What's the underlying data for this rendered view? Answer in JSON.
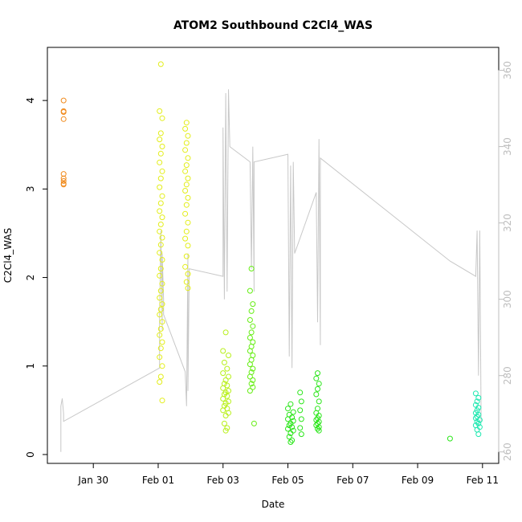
{
  "chart_data": {
    "type": "scatter",
    "title": "ATOM2 Southbound C2Cl4_WAS",
    "xlabel": "Date",
    "ylabel": "C2Cl4_WAS",
    "xlim": [
      "2017-01-28T14:00",
      "2017-02-11T12:00"
    ],
    "ylim": [
      -0.1,
      4.6
    ],
    "y2lim": [
      257,
      366
    ],
    "x_ticks": [
      {
        "label": "Jan 30",
        "date": "2017-01-30"
      },
      {
        "label": "Feb 01",
        "date": "2017-02-01"
      },
      {
        "label": "Feb 03",
        "date": "2017-02-03"
      },
      {
        "label": "Feb 05",
        "date": "2017-02-05"
      },
      {
        "label": "Feb 07",
        "date": "2017-02-07"
      },
      {
        "label": "Feb 09",
        "date": "2017-02-09"
      },
      {
        "label": "Feb 11",
        "date": "2017-02-11"
      }
    ],
    "y_ticks": [
      0,
      1,
      2,
      3,
      4
    ],
    "y2_ticks": [
      260,
      280,
      300,
      320,
      340,
      360
    ],
    "colors": {
      "orange": "#f08a1c",
      "yellow": "#e3ee1a",
      "yellow_green": "#b8f01a",
      "green": "#66ee14",
      "bright_green": "#2be61a",
      "aqua": "#1ee8b0",
      "secondary_line": "#c8c8c8",
      "right_axis": "#bdbdbd"
    },
    "scatter_groups": [
      {
        "color": "orange",
        "points": [
          [
            "2017-01-29T02:00",
            4.0
          ],
          [
            "2017-01-29T02:00",
            3.88
          ],
          [
            "2017-01-29T02:00",
            3.87
          ],
          [
            "2017-01-29T02:00",
            3.79
          ],
          [
            "2017-01-29T02:00",
            3.17
          ],
          [
            "2017-01-29T02:00",
            3.12
          ],
          [
            "2017-01-29T02:00",
            3.09
          ],
          [
            "2017-01-29T02:00",
            3.06
          ],
          [
            "2017-01-29T02:00",
            3.05
          ]
        ]
      },
      {
        "color": "yellow",
        "points": [
          [
            "2017-02-01T02:00",
            4.41
          ],
          [
            "2017-02-01T01:00",
            3.88
          ],
          [
            "2017-02-01T03:00",
            3.8
          ],
          [
            "2017-02-01T02:00",
            3.63
          ],
          [
            "2017-02-01T01:00",
            3.56
          ],
          [
            "2017-02-01T03:00",
            3.48
          ],
          [
            "2017-02-01T02:00",
            3.4
          ],
          [
            "2017-02-01T01:00",
            3.3
          ],
          [
            "2017-02-01T03:00",
            3.2
          ],
          [
            "2017-02-01T02:00",
            3.12
          ],
          [
            "2017-02-01T01:00",
            3.02
          ],
          [
            "2017-02-01T03:00",
            2.92
          ],
          [
            "2017-02-01T02:00",
            2.84
          ],
          [
            "2017-02-01T01:00",
            2.75
          ],
          [
            "2017-02-01T03:00",
            2.68
          ],
          [
            "2017-02-01T02:00",
            2.6
          ],
          [
            "2017-02-01T01:00",
            2.52
          ],
          [
            "2017-02-01T03:00",
            2.45
          ],
          [
            "2017-02-01T02:00",
            2.37
          ],
          [
            "2017-02-01T01:00",
            2.28
          ],
          [
            "2017-02-01T03:00",
            2.2
          ],
          [
            "2017-02-01T02:00",
            2.1
          ],
          [
            "2017-02-01T01:00",
            2.02
          ],
          [
            "2017-02-01T03:00",
            1.93
          ],
          [
            "2017-02-01T02:00",
            1.85
          ],
          [
            "2017-02-01T01:00",
            1.77
          ],
          [
            "2017-02-01T03:00",
            1.7
          ],
          [
            "2017-02-01T02:00",
            1.64
          ],
          [
            "2017-02-01T01:00",
            1.58
          ],
          [
            "2017-02-01T03:00",
            1.5
          ],
          [
            "2017-02-01T02:00",
            1.42
          ],
          [
            "2017-02-01T01:00",
            1.35
          ],
          [
            "2017-02-01T03:00",
            1.27
          ],
          [
            "2017-02-01T02:00",
            1.2
          ],
          [
            "2017-02-01T01:00",
            1.1
          ],
          [
            "2017-02-01T03:00",
            1.0
          ],
          [
            "2017-02-01T02:00",
            0.88
          ],
          [
            "2017-02-01T01:00",
            0.82
          ],
          [
            "2017-02-01T03:00",
            0.61
          ],
          [
            "2017-02-01T21:00",
            3.75
          ],
          [
            "2017-02-01T20:00",
            3.68
          ],
          [
            "2017-02-01T22:00",
            3.6
          ],
          [
            "2017-02-01T21:00",
            3.52
          ],
          [
            "2017-02-01T20:00",
            3.44
          ],
          [
            "2017-02-01T22:00",
            3.35
          ],
          [
            "2017-02-01T21:00",
            3.27
          ],
          [
            "2017-02-01T20:00",
            3.2
          ],
          [
            "2017-02-01T22:00",
            3.12
          ],
          [
            "2017-02-01T21:00",
            3.05
          ],
          [
            "2017-02-01T20:00",
            2.98
          ],
          [
            "2017-02-01T22:00",
            2.9
          ],
          [
            "2017-02-01T21:00",
            2.82
          ],
          [
            "2017-02-01T20:00",
            2.72
          ],
          [
            "2017-02-01T22:00",
            2.62
          ],
          [
            "2017-02-01T21:00",
            2.52
          ],
          [
            "2017-02-01T20:00",
            2.44
          ],
          [
            "2017-02-01T22:00",
            2.36
          ],
          [
            "2017-02-01T21:00",
            2.24
          ],
          [
            "2017-02-01T20:00",
            2.12
          ],
          [
            "2017-02-01T22:00",
            2.04
          ],
          [
            "2017-02-01T21:00",
            1.95
          ],
          [
            "2017-02-01T22:00",
            1.88
          ]
        ]
      },
      {
        "color": "yellow_green",
        "points": [
          [
            "2017-02-03T02:00",
            1.38
          ],
          [
            "2017-02-03T00:00",
            1.17
          ],
          [
            "2017-02-03T04:00",
            1.12
          ],
          [
            "2017-02-03T01:00",
            1.04
          ],
          [
            "2017-02-03T03:00",
            0.97
          ],
          [
            "2017-02-03T00:00",
            0.92
          ],
          [
            "2017-02-03T04:00",
            0.88
          ],
          [
            "2017-02-03T02:00",
            0.84
          ],
          [
            "2017-02-03T01:00",
            0.8
          ],
          [
            "2017-02-03T03:00",
            0.78
          ],
          [
            "2017-02-03T00:00",
            0.75
          ],
          [
            "2017-02-03T04:00",
            0.72
          ],
          [
            "2017-02-03T02:00",
            0.7
          ],
          [
            "2017-02-03T01:00",
            0.68
          ],
          [
            "2017-02-03T03:00",
            0.66
          ],
          [
            "2017-02-03T00:00",
            0.63
          ],
          [
            "2017-02-03T04:00",
            0.6
          ],
          [
            "2017-02-03T02:00",
            0.58
          ],
          [
            "2017-02-03T01:00",
            0.55
          ],
          [
            "2017-02-03T03:00",
            0.52
          ],
          [
            "2017-02-03T00:00",
            0.5
          ],
          [
            "2017-02-03T04:00",
            0.47
          ],
          [
            "2017-02-03T02:00",
            0.44
          ],
          [
            "2017-02-03T01:00",
            0.35
          ],
          [
            "2017-02-03T03:00",
            0.3
          ],
          [
            "2017-02-03T02:00",
            0.27
          ]
        ]
      },
      {
        "color": "green",
        "points": [
          [
            "2017-02-03T21:00",
            2.1
          ],
          [
            "2017-02-03T20:00",
            1.85
          ],
          [
            "2017-02-03T22:00",
            1.7
          ],
          [
            "2017-02-03T21:00",
            1.62
          ],
          [
            "2017-02-03T20:00",
            1.52
          ],
          [
            "2017-02-03T22:00",
            1.45
          ],
          [
            "2017-02-03T21:00",
            1.38
          ],
          [
            "2017-02-03T20:00",
            1.32
          ],
          [
            "2017-02-03T22:00",
            1.27
          ],
          [
            "2017-02-03T21:00",
            1.22
          ],
          [
            "2017-02-03T20:00",
            1.17
          ],
          [
            "2017-02-03T22:00",
            1.12
          ],
          [
            "2017-02-03T21:00",
            1.07
          ],
          [
            "2017-02-03T20:00",
            1.02
          ],
          [
            "2017-02-03T22:00",
            0.97
          ],
          [
            "2017-02-03T21:00",
            0.93
          ],
          [
            "2017-02-03T20:00",
            0.88
          ],
          [
            "2017-02-03T22:00",
            0.84
          ],
          [
            "2017-02-03T21:00",
            0.8
          ],
          [
            "2017-02-03T22:00",
            0.76
          ],
          [
            "2017-02-03T20:00",
            0.72
          ],
          [
            "2017-02-03T23:00",
            0.35
          ]
        ]
      },
      {
        "color": "bright_green",
        "points": [
          [
            "2017-02-05T02:00",
            0.57
          ],
          [
            "2017-02-05T00:00",
            0.52
          ],
          [
            "2017-02-05T04:00",
            0.48
          ],
          [
            "2017-02-05T01:00",
            0.45
          ],
          [
            "2017-02-05T03:00",
            0.42
          ],
          [
            "2017-02-05T00:00",
            0.4
          ],
          [
            "2017-02-05T04:00",
            0.38
          ],
          [
            "2017-02-05T02:00",
            0.35
          ],
          [
            "2017-02-05T01:00",
            0.33
          ],
          [
            "2017-02-05T03:00",
            0.31
          ],
          [
            "2017-02-05T00:00",
            0.29
          ],
          [
            "2017-02-05T04:00",
            0.27
          ],
          [
            "2017-02-05T02:00",
            0.24
          ],
          [
            "2017-02-05T01:00",
            0.2
          ],
          [
            "2017-02-05T03:00",
            0.16
          ],
          [
            "2017-02-05T02:00",
            0.14
          ],
          [
            "2017-02-05T09:00",
            0.7
          ],
          [
            "2017-02-05T10:00",
            0.6
          ],
          [
            "2017-02-05T09:00",
            0.5
          ],
          [
            "2017-02-05T10:00",
            0.4
          ],
          [
            "2017-02-05T09:00",
            0.3
          ],
          [
            "2017-02-05T10:00",
            0.23
          ],
          [
            "2017-02-05T22:00",
            0.92
          ],
          [
            "2017-02-05T21:00",
            0.86
          ],
          [
            "2017-02-05T23:00",
            0.8
          ],
          [
            "2017-02-05T22:00",
            0.74
          ],
          [
            "2017-02-05T21:00",
            0.68
          ],
          [
            "2017-02-05T23:00",
            0.6
          ],
          [
            "2017-02-05T22:00",
            0.52
          ],
          [
            "2017-02-05T21:00",
            0.47
          ],
          [
            "2017-02-05T23:00",
            0.44
          ],
          [
            "2017-02-05T22:00",
            0.41
          ],
          [
            "2017-02-05T21:00",
            0.39
          ],
          [
            "2017-02-05T23:00",
            0.37
          ],
          [
            "2017-02-05T22:00",
            0.35
          ],
          [
            "2017-02-05T21:00",
            0.33
          ],
          [
            "2017-02-05T23:00",
            0.31
          ],
          [
            "2017-02-05T22:00",
            0.29
          ],
          [
            "2017-02-05T23:00",
            0.27
          ],
          [
            "2017-02-10T00:00",
            0.18
          ]
        ]
      },
      {
        "color": "aqua",
        "points": [
          [
            "2017-02-10T19:00",
            0.69
          ],
          [
            "2017-02-10T21:00",
            0.64
          ],
          [
            "2017-02-10T20:00",
            0.6
          ],
          [
            "2017-02-10T19:00",
            0.56
          ],
          [
            "2017-02-10T21:00",
            0.53
          ],
          [
            "2017-02-10T20:00",
            0.5
          ],
          [
            "2017-02-10T19:00",
            0.47
          ],
          [
            "2017-02-10T21:00",
            0.45
          ],
          [
            "2017-02-10T20:00",
            0.43
          ],
          [
            "2017-02-10T19:00",
            0.41
          ],
          [
            "2017-02-10T22:00",
            0.39
          ],
          [
            "2017-02-10T20:00",
            0.37
          ],
          [
            "2017-02-10T21:00",
            0.35
          ],
          [
            "2017-02-10T19:00",
            0.33
          ],
          [
            "2017-02-10T22:00",
            0.31
          ],
          [
            "2017-02-10T20:00",
            0.28
          ],
          [
            "2017-02-10T21:00",
            0.23
          ]
        ]
      }
    ],
    "secondary_line": {
      "color": "secondary_line",
      "axis": "right",
      "points": [
        [
          "2017-01-29T00:00",
          260
        ],
        [
          "2017-01-29T00:00",
          272
        ],
        [
          "2017-01-29T01:00",
          274
        ],
        [
          "2017-01-29T02:00",
          270
        ],
        [
          "2017-01-29T02:00",
          268
        ],
        [
          "2017-02-01T01:00",
          282
        ],
        [
          "2017-02-01T01:00",
          295
        ],
        [
          "2017-02-01T02:00",
          318
        ],
        [
          "2017-02-01T03:00",
          292
        ],
        [
          "2017-02-01T03:00",
          312
        ],
        [
          "2017-02-01T04:00",
          300
        ],
        [
          "2017-02-01T04:00",
          296
        ],
        [
          "2017-02-01T20:00",
          281
        ],
        [
          "2017-02-01T21:00",
          272
        ],
        [
          "2017-02-01T22:00",
          312
        ],
        [
          "2017-02-01T22:00",
          276
        ],
        [
          "2017-02-01T23:00",
          308
        ],
        [
          "2017-02-03T00:00",
          306
        ],
        [
          "2017-02-03T00:00",
          345
        ],
        [
          "2017-02-03T01:00",
          300
        ],
        [
          "2017-02-03T02:00",
          354
        ],
        [
          "2017-02-03T03:00",
          302
        ],
        [
          "2017-02-03T04:00",
          355
        ],
        [
          "2017-02-03T05:00",
          340
        ],
        [
          "2017-02-03T20:00",
          336
        ],
        [
          "2017-02-03T21:00",
          308
        ],
        [
          "2017-02-03T22:00",
          340
        ],
        [
          "2017-02-03T23:00",
          302
        ],
        [
          "2017-02-03T23:00",
          336
        ],
        [
          "2017-02-05T00:00",
          338
        ],
        [
          "2017-02-05T01:00",
          285
        ],
        [
          "2017-02-05T02:00",
          335
        ],
        [
          "2017-02-05T03:00",
          282
        ],
        [
          "2017-02-05T04:00",
          336
        ],
        [
          "2017-02-05T05:00",
          312
        ],
        [
          "2017-02-05T21:00",
          328
        ],
        [
          "2017-02-05T22:00",
          294
        ],
        [
          "2017-02-05T23:00",
          342
        ],
        [
          "2017-02-06T00:00",
          288
        ],
        [
          "2017-02-06T00:00",
          337
        ],
        [
          "2017-02-10T00:00",
          310
        ],
        [
          "2017-02-10T19:00",
          306
        ],
        [
          "2017-02-10T20:00",
          318
        ],
        [
          "2017-02-10T21:00",
          280
        ],
        [
          "2017-02-10T22:00",
          318
        ],
        [
          "2017-02-10T23:00",
          268
        ]
      ]
    }
  }
}
